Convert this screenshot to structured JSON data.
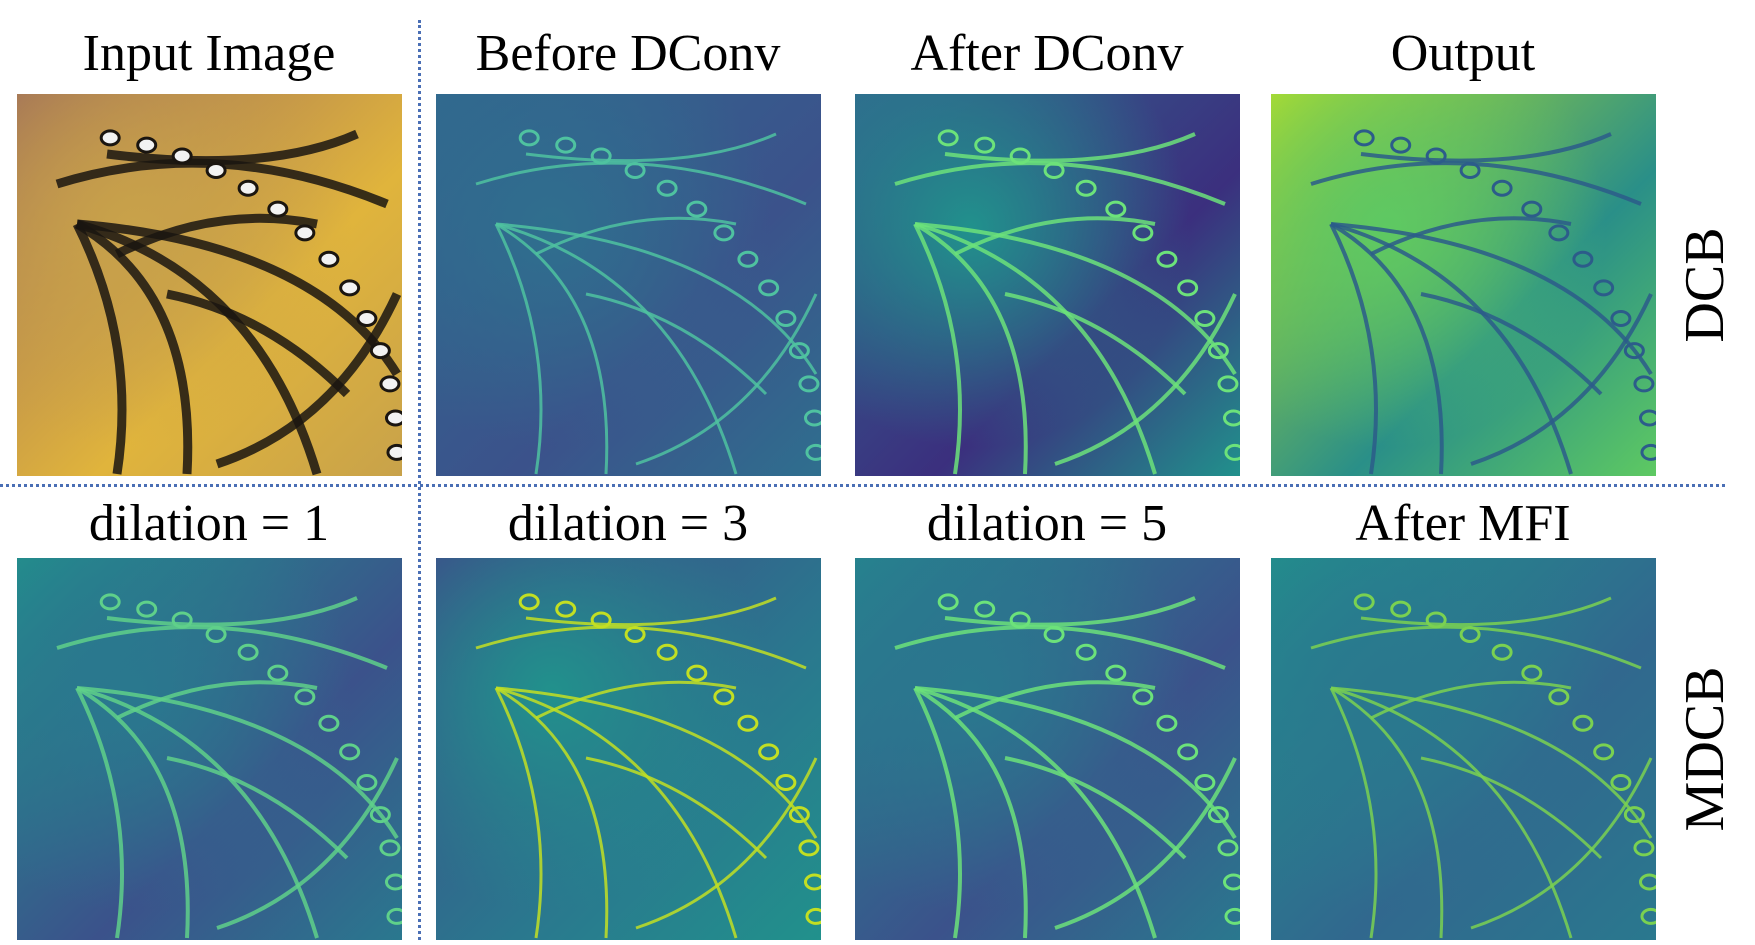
{
  "rows": [
    {
      "label": "DCB",
      "panels": [
        {
          "label": "Input Image"
        },
        {
          "label": "Before DConv"
        },
        {
          "label": "After DConv"
        },
        {
          "label": "Output"
        }
      ]
    },
    {
      "label": "MDCB",
      "panels": [
        {
          "label": "dilation = 1"
        },
        {
          "label": "dilation = 3"
        },
        {
          "label": "dilation = 5"
        },
        {
          "label": "After MFI"
        }
      ]
    }
  ]
}
